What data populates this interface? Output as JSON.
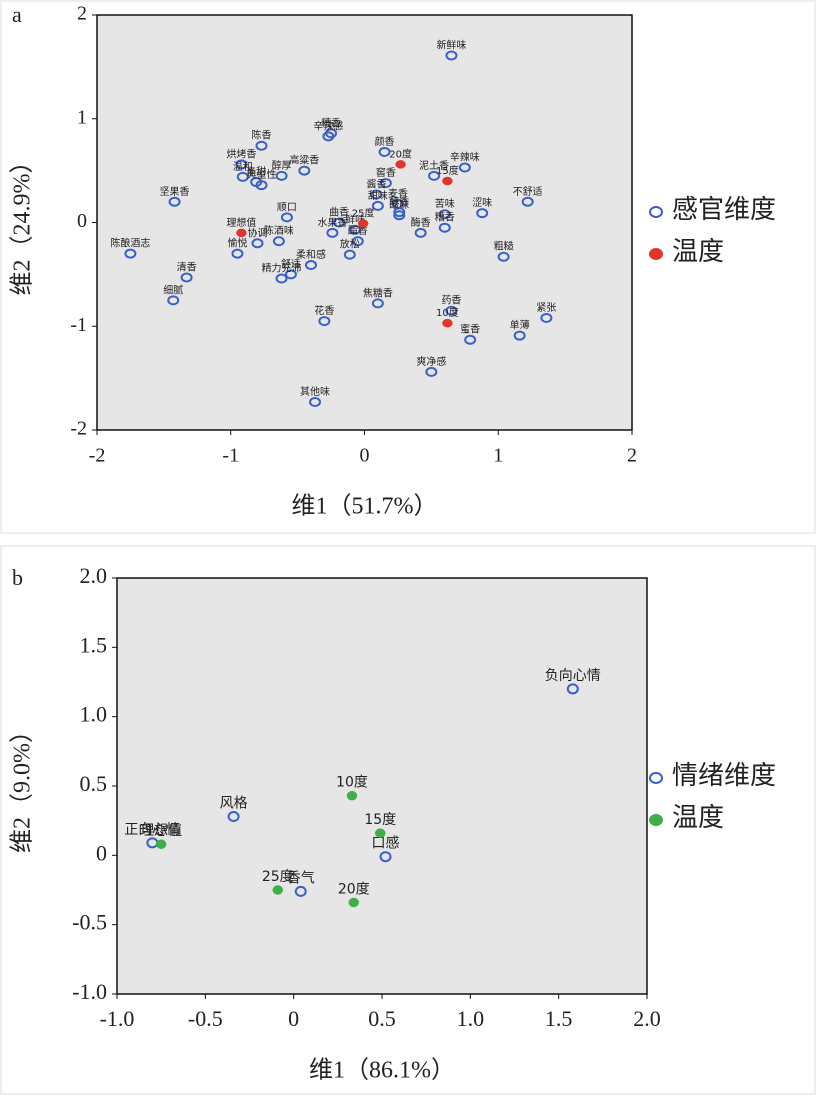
{
  "chart_data": [
    {
      "type": "scatter",
      "panel": "a",
      "xlabel": "维1（51.7%）",
      "ylabel": "维2（24.9%）",
      "xlim": [
        -2,
        2
      ],
      "ylim": [
        -2,
        2
      ],
      "xticks": [
        -2,
        -1,
        0,
        1,
        2
      ],
      "yticks": [
        -2,
        -1,
        0,
        1,
        2
      ],
      "series": [
        {
          "name": "感官维度",
          "color": "#3a5fc8",
          "marker": "open",
          "labels": [
            "新鲜味",
            "糟香",
            "辛辣感",
            "陈香",
            "颜香",
            "烘烤香",
            "高粱香",
            "辛辣味",
            "窖香",
            "酱香",
            "甜味",
            "麦香",
            "醇香",
            "温和",
            "醇厚",
            "辛甜",
            "典型性",
            "坚果香",
            "泥土香",
            "不舒适",
            "顺口",
            "曲香",
            "鲜味",
            "酸味",
            "苦味",
            "涩味",
            "陈酿酒志",
            "愉悦",
            "协调",
            "陈酒味",
            "水果香",
            "酯香",
            "酶香",
            "糟香",
            "粗糙",
            "清香",
            "舒适",
            "放松",
            "精力充沛",
            "柔和感",
            "焦糖香",
            "紧张",
            "细腻",
            "花香",
            "药香",
            "蜜香",
            "单薄",
            "爽净感",
            "其他味"
          ],
          "x": [
            0.65,
            -0.25,
            -0.27,
            -0.77,
            0.15,
            -0.92,
            -0.45,
            0.75,
            0.16,
            0.09,
            0.1,
            0.25,
            0.26,
            -0.91,
            -0.62,
            -0.81,
            -0.77,
            -1.42,
            0.52,
            1.22,
            -0.58,
            -0.19,
            -0.07,
            0.26,
            0.6,
            0.88,
            -1.75,
            -0.95,
            -0.8,
            -0.64,
            -0.24,
            -0.05,
            0.42,
            0.6,
            1.04,
            -1.33,
            -0.55,
            -0.11,
            -0.62,
            -0.4,
            0.1,
            1.36,
            -1.43,
            -0.3,
            0.65,
            0.79,
            1.16,
            0.5,
            -0.37
          ],
          "y": [
            1.61,
            0.86,
            0.83,
            0.74,
            0.68,
            0.56,
            0.5,
            0.53,
            0.38,
            0.27,
            0.16,
            0.18,
            0.1,
            0.44,
            0.45,
            0.39,
            0.36,
            0.2,
            0.45,
            0.2,
            0.05,
            0.0,
            -0.07,
            0.07,
            0.08,
            0.09,
            -0.3,
            -0.3,
            -0.2,
            -0.18,
            -0.1,
            -0.18,
            -0.1,
            -0.05,
            -0.33,
            -0.53,
            -0.5,
            -0.31,
            -0.54,
            -0.41,
            -0.78,
            -0.92,
            -0.75,
            -0.95,
            -0.85,
            -1.13,
            -1.09,
            -1.44,
            -1.73
          ]
        },
        {
          "name": "温度",
          "color": "#e0352b",
          "marker": "filled",
          "labels": [
            "20度",
            "15度",
            "25度",
            "10度",
            "理想值"
          ],
          "x": [
            0.27,
            0.62,
            -0.01,
            0.62,
            -0.92
          ],
          "y": [
            0.56,
            0.4,
            -0.01,
            -0.97,
            -0.1
          ]
        }
      ]
    },
    {
      "type": "scatter",
      "panel": "b",
      "xlabel": "维1（86.1%）",
      "ylabel": "维2（9.0%）",
      "xlim": [
        -1,
        2
      ],
      "ylim": [
        -1,
        2
      ],
      "xticks": [
        {
          "value": -1,
          "label": "-1.0"
        },
        -0.5,
        0,
        0.5,
        {
          "value": 1,
          "label": "1.0"
        },
        1.5,
        {
          "value": 2,
          "label": "2.0"
        }
      ],
      "yticks": [
        {
          "value": -1,
          "label": "-1.0"
        },
        -0.5,
        0,
        0.5,
        {
          "value": 1,
          "label": "1.0"
        },
        1.5,
        {
          "value": 2,
          "label": "2.0"
        }
      ],
      "series": [
        {
          "name": "情绪维度",
          "color": "#3a5fc8",
          "marker": "open",
          "labels": [
            "负向心情",
            "风格",
            "正向心情",
            "口感",
            "香气"
          ],
          "x": [
            1.58,
            -0.34,
            -0.8,
            0.52,
            0.04
          ],
          "y": [
            1.2,
            0.28,
            0.09,
            -0.01,
            -0.26
          ]
        },
        {
          "name": "温度",
          "color": "#3fae49",
          "marker": "filled",
          "labels": [
            "10度",
            "15度",
            "20度",
            "25度",
            "理想值"
          ],
          "x": [
            0.33,
            0.49,
            0.34,
            -0.09,
            -0.75
          ],
          "y": [
            0.43,
            0.16,
            -0.34,
            -0.25,
            0.08
          ]
        }
      ]
    }
  ]
}
